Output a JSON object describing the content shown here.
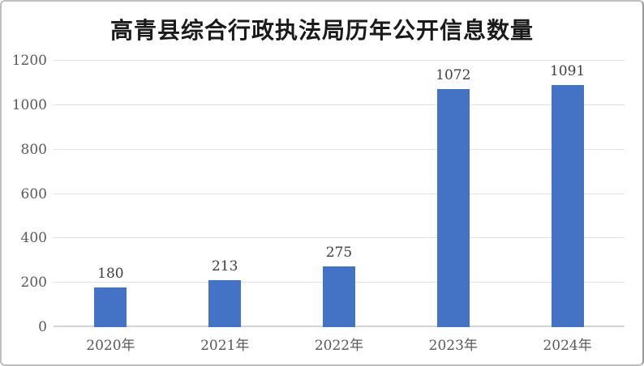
{
  "chart_data": {
    "type": "bar",
    "title": "高青县综合行政执法局历年公开信息数量",
    "categories": [
      "2020年",
      "2021年",
      "2022年",
      "2023年",
      "2024年"
    ],
    "values": [
      180,
      213,
      275,
      1072,
      1091
    ],
    "data_labels": [
      "180",
      "213",
      "275",
      "1072",
      "1091"
    ],
    "xlabel": "",
    "ylabel": "",
    "y_ticks": [
      0,
      200,
      400,
      600,
      800,
      1000,
      1200
    ],
    "ylim": [
      0,
      1200
    ],
    "grid": true,
    "legend_position": "none",
    "colors": {
      "bar": "#4472c4",
      "gridline": "#e2e2e2",
      "axis_line": "#d4d4d4",
      "axis_label_text": "#595959",
      "data_label_text": "#3f3f3f",
      "title_text": "#1a1a1a",
      "background": "#ffffff",
      "frame_border": "#bfbfbf"
    }
  }
}
